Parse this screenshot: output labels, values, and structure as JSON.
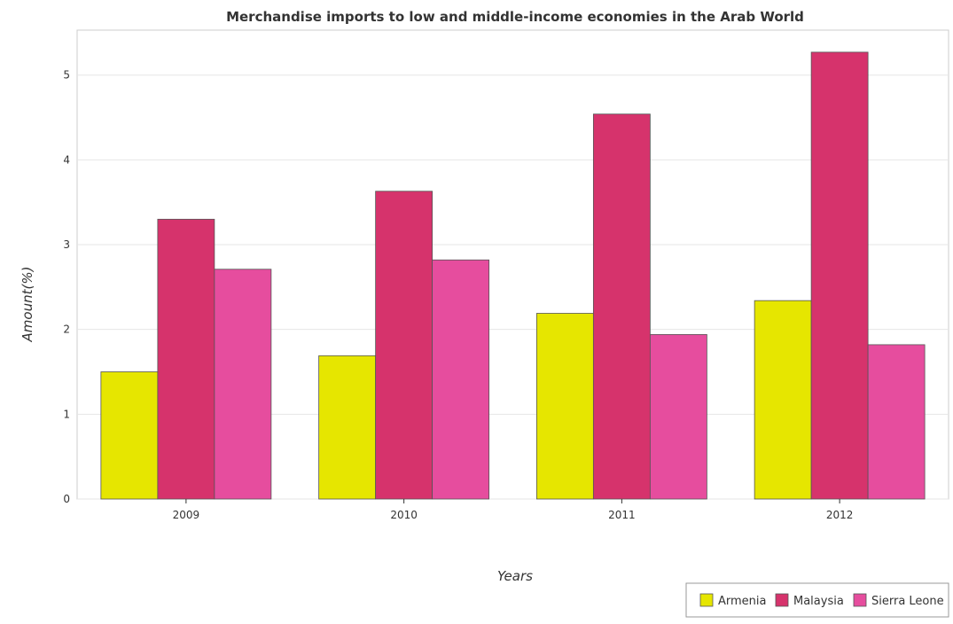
{
  "chart_data": {
    "type": "bar",
    "title": "Merchandise imports to low and middle-income economies in the Arab World",
    "xlabel": "Years",
    "ylabel": "Amount(%)",
    "categories": [
      "2009",
      "2010",
      "2011",
      "2012"
    ],
    "series": [
      {
        "name": "Armenia",
        "color": "#e6e600",
        "values": [
          1.5,
          1.69,
          2.19,
          2.34
        ]
      },
      {
        "name": "Malaysia",
        "color": "#d6336c",
        "values": [
          3.3,
          3.63,
          4.54,
          5.27
        ]
      },
      {
        "name": "Sierra Leone",
        "color": "#e64d9e",
        "values": [
          2.71,
          2.82,
          1.94,
          1.82
        ]
      }
    ],
    "ylim": [
      0,
      5.53
    ],
    "yticks": [
      "0",
      "1",
      "2",
      "3",
      "4",
      "5"
    ],
    "grid": true,
    "legend_position": "bottom-right"
  }
}
